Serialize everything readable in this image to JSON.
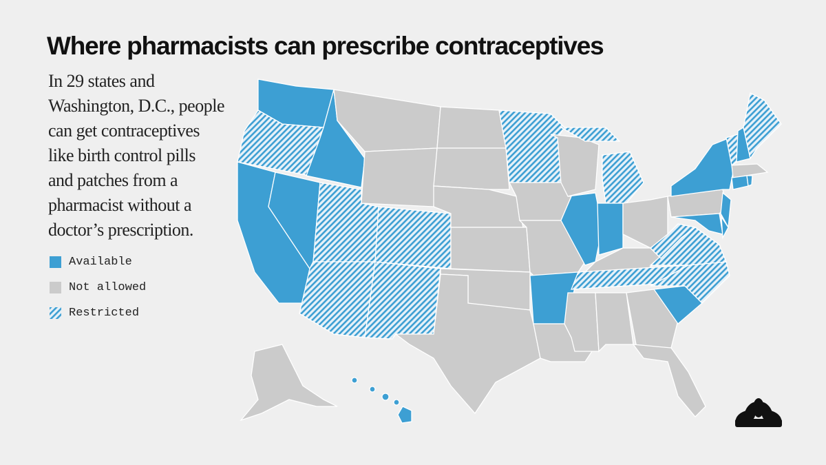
{
  "header": {
    "title": "Where pharmacists can prescribe contraceptives"
  },
  "description": [
    "In 29 states and",
    "Washington, D.C., people",
    "can get contraceptives",
    "like birth control pills",
    "and patches from a",
    "pharmacist without a",
    "doctor’s prescription."
  ],
  "legend": [
    {
      "label": "Available",
      "color": "#3d9fd3"
    },
    {
      "label": "Not allowed",
      "color": "#cbcbcb"
    },
    {
      "label": "Restricted",
      "color": "#3d9fd3"
    }
  ]
}
